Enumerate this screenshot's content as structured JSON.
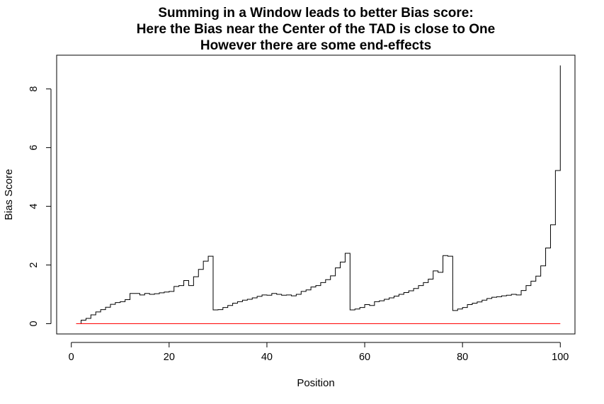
{
  "chart_data": {
    "type": "line",
    "title_lines": [
      "Summing in a Window leads to better Bias score:",
      "Here the Bias near the Center of the TAD is close to One",
      "However there are some end-effects"
    ],
    "xlabel": "Position",
    "ylabel": "Bias Score",
    "xlim": [
      -3,
      103
    ],
    "ylim": [
      -0.35,
      9.15
    ],
    "xticks": [
      0,
      20,
      40,
      60,
      80,
      100
    ],
    "yticks": [
      0,
      2,
      4,
      6,
      8
    ],
    "grid": false,
    "line_style": "step",
    "series": [
      {
        "color": "#000000",
        "x": [
          1,
          2,
          3,
          4,
          5,
          6,
          7,
          8,
          9,
          10,
          11,
          12,
          13,
          14,
          15,
          16,
          17,
          18,
          19,
          20,
          21,
          22,
          23,
          24,
          25,
          26,
          27,
          28,
          29,
          30,
          31,
          32,
          33,
          34,
          35,
          36,
          37,
          38,
          39,
          40,
          41,
          42,
          43,
          44,
          45,
          46,
          47,
          48,
          49,
          50,
          51,
          52,
          53,
          54,
          55,
          56,
          57,
          58,
          59,
          60,
          61,
          62,
          63,
          64,
          65,
          66,
          67,
          68,
          69,
          70,
          71,
          72,
          73,
          74,
          75,
          76,
          77,
          78,
          79,
          80,
          81,
          82,
          83,
          84,
          85,
          86,
          87,
          88,
          89,
          90,
          91,
          92,
          93,
          94,
          95,
          96,
          97,
          98,
          99,
          100
        ],
        "values": [
          0.0,
          0.12,
          0.18,
          0.3,
          0.4,
          0.48,
          0.56,
          0.66,
          0.72,
          0.75,
          0.82,
          1.03,
          1.03,
          0.98,
          1.03,
          1.0,
          1.02,
          1.05,
          1.08,
          1.1,
          1.27,
          1.3,
          1.47,
          1.3,
          1.6,
          1.85,
          2.13,
          2.3,
          0.47,
          0.48,
          0.55,
          0.62,
          0.7,
          0.75,
          0.8,
          0.83,
          0.88,
          0.93,
          0.98,
          0.97,
          1.03,
          1.0,
          0.97,
          0.98,
          0.95,
          1.0,
          1.1,
          1.15,
          1.25,
          1.3,
          1.4,
          1.5,
          1.63,
          1.9,
          2.1,
          2.4,
          0.47,
          0.5,
          0.55,
          0.65,
          0.62,
          0.75,
          0.78,
          0.83,
          0.88,
          0.94,
          1.0,
          1.06,
          1.12,
          1.2,
          1.3,
          1.4,
          1.52,
          1.8,
          1.75,
          2.32,
          2.3,
          0.45,
          0.5,
          0.55,
          0.65,
          0.7,
          0.74,
          0.8,
          0.86,
          0.9,
          0.92,
          0.95,
          0.97,
          1.0,
          0.98,
          1.13,
          1.3,
          1.45,
          1.62,
          1.97,
          2.58,
          3.37,
          5.22,
          8.8
        ]
      },
      {
        "color": "#ff0000",
        "x": [
          1,
          100
        ],
        "values": [
          0.0,
          0.0
        ]
      }
    ]
  }
}
